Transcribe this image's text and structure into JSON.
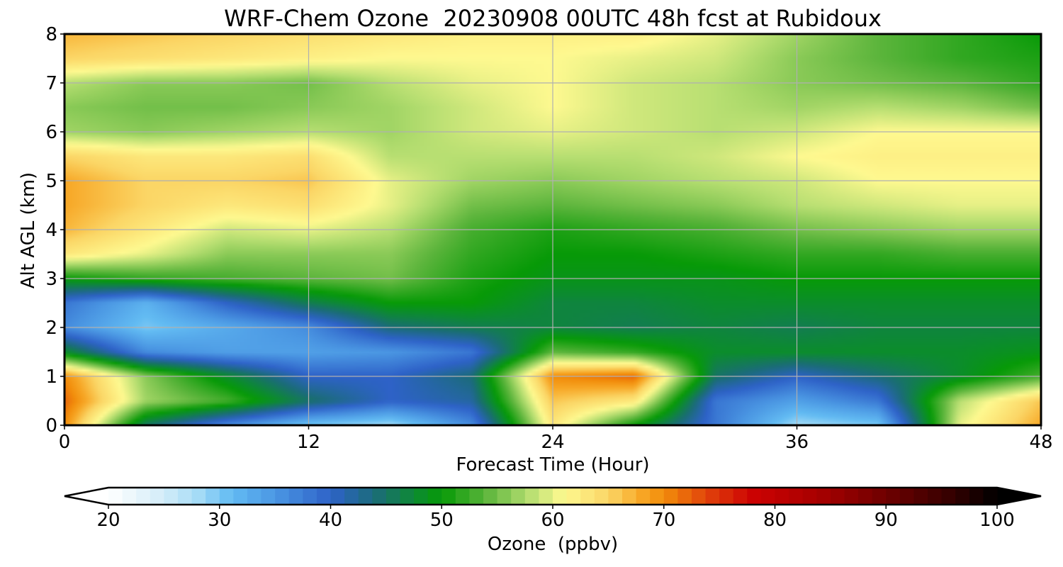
{
  "chart_data": {
    "type": "heatmap",
    "title": "WRF-Chem Ozone  20230908 00UTC 48h fcst at Rubidoux",
    "xlabel": "Forecast Time (Hour)",
    "ylabel": "Alt AGL (km)",
    "xlim": [
      0,
      48
    ],
    "ylim": [
      0,
      8
    ],
    "xticks": [
      0,
      12,
      24,
      36,
      48
    ],
    "yticks": [
      0,
      1,
      2,
      3,
      4,
      5,
      6,
      7,
      8
    ],
    "grid": true,
    "x": [
      0,
      4,
      8,
      12,
      16,
      20,
      24,
      28,
      32,
      36,
      40,
      44,
      48
    ],
    "y": [
      0,
      0.5,
      1,
      1.5,
      2,
      2.5,
      3,
      3.5,
      4,
      4.5,
      5,
      5.5,
      6,
      6.5,
      7,
      7.5,
      8
    ],
    "values": [
      [
        70,
        45,
        36,
        30,
        28,
        36,
        63,
        50,
        38,
        28,
        30,
        60,
        68
      ],
      [
        72,
        57,
        53,
        45,
        40,
        42,
        66,
        63,
        38,
        34,
        38,
        58,
        66
      ],
      [
        70,
        56,
        48,
        40,
        40,
        44,
        70,
        72,
        45,
        40,
        44,
        48,
        53
      ],
      [
        48,
        36,
        34,
        34,
        35,
        38,
        54,
        52,
        48,
        48,
        48,
        48,
        49
      ],
      [
        36,
        30,
        33,
        36,
        44,
        46,
        47,
        46,
        47,
        46,
        47,
        47,
        47
      ],
      [
        38,
        32,
        40,
        46,
        50,
        50,
        47,
        47,
        48,
        48,
        48,
        48,
        48
      ],
      [
        50,
        52,
        53,
        54,
        55,
        51,
        49,
        49,
        49,
        50,
        50,
        50,
        50
      ],
      [
        63,
        60,
        56,
        56,
        56,
        52,
        50,
        50,
        51,
        52,
        52,
        53,
        53
      ],
      [
        67,
        63,
        59,
        60,
        58,
        53,
        51,
        52,
        53,
        55,
        56,
        57,
        57
      ],
      [
        68,
        65,
        63,
        64,
        60,
        55,
        54,
        55,
        56,
        58,
        59,
        60,
        60
      ],
      [
        68,
        65,
        65,
        66,
        60,
        57,
        56,
        57,
        58,
        59,
        61,
        61,
        61
      ],
      [
        65,
        63,
        63,
        64,
        58,
        58,
        58,
        58,
        59,
        61,
        62,
        62,
        62
      ],
      [
        57,
        56,
        57,
        58,
        57,
        59,
        60,
        59,
        58,
        59,
        61,
        61,
        61
      ],
      [
        56,
        55,
        55,
        56,
        57,
        59,
        61,
        59,
        58,
        57,
        58,
        57,
        55
      ],
      [
        58,
        56,
        56,
        55,
        58,
        60,
        61,
        59,
        58,
        56,
        55,
        54,
        52
      ],
      [
        65,
        64,
        63,
        62,
        61,
        61,
        61,
        60,
        59,
        56,
        54,
        52,
        51
      ],
      [
        67,
        66,
        65,
        64,
        63,
        62,
        62,
        62,
        60,
        57,
        54,
        52,
        50
      ]
    ],
    "colorbar": {
      "label": "Ozone  (ppbv)",
      "min": 20,
      "max": 100,
      "ticks": [
        20,
        30,
        40,
        50,
        60,
        70,
        80,
        90,
        100
      ],
      "extend": "both",
      "colors": [
        [
          20,
          "#ffffff"
        ],
        [
          25,
          "#d2ecf8"
        ],
        [
          28,
          "#a7dcf6"
        ],
        [
          31,
          "#63bcf3"
        ],
        [
          35,
          "#4b97e3"
        ],
        [
          40,
          "#2e62c8"
        ],
        [
          44,
          "#1b6c78"
        ],
        [
          48,
          "#0b8d2b"
        ],
        [
          50,
          "#079a07"
        ],
        [
          54,
          "#5cb53c"
        ],
        [
          58,
          "#b8df72"
        ],
        [
          61,
          "#fef990"
        ],
        [
          65,
          "#fbd666"
        ],
        [
          68,
          "#f7a726"
        ],
        [
          70,
          "#f28d0b"
        ],
        [
          74,
          "#e0400b"
        ],
        [
          78,
          "#cc0202"
        ],
        [
          84,
          "#a70000"
        ],
        [
          90,
          "#6e0000"
        ],
        [
          96,
          "#330000"
        ],
        [
          100,
          "#000000"
        ]
      ]
    }
  }
}
